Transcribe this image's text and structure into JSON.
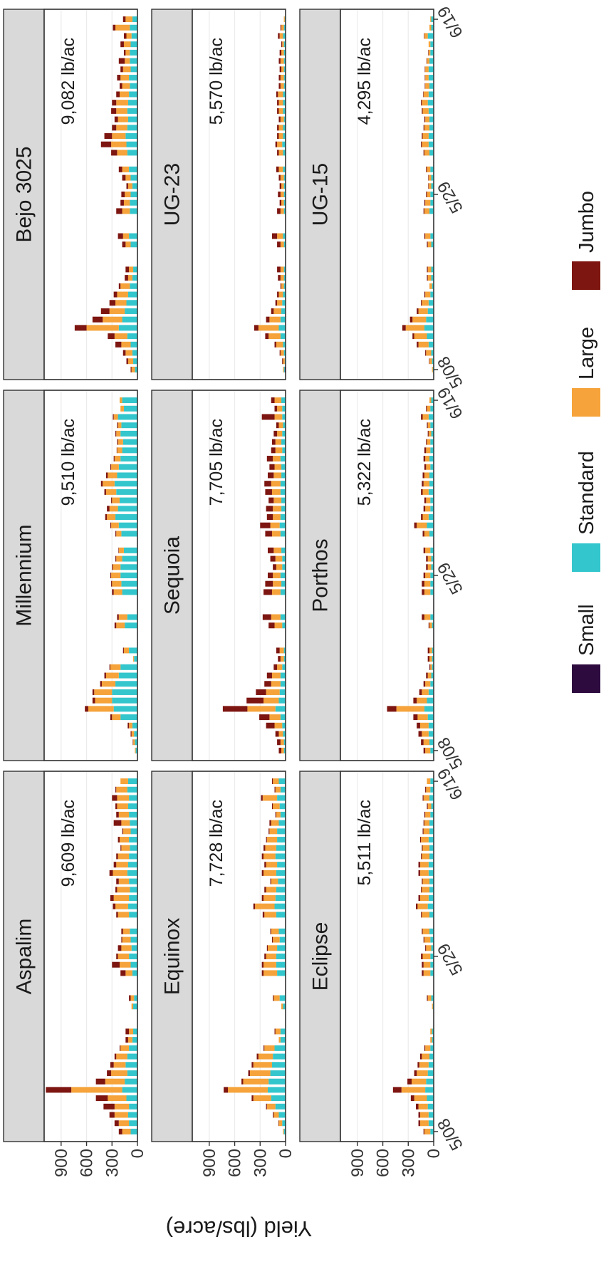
{
  "chart_data": {
    "type": "bar",
    "stacked": true,
    "facet_layout": "3 rows x 3 columns",
    "ylabel": "Yield (lbs/acre)",
    "xlabel": "",
    "ylim": [
      0,
      1100
    ],
    "y_ticks": [
      "0",
      "300",
      "600",
      "900"
    ],
    "y_tick_values": [
      0,
      300,
      600,
      900
    ],
    "x_tick_labels": [
      "5/08",
      "5/29",
      "6/19"
    ],
    "x_tick_days": [
      0,
      21,
      42
    ],
    "harvest_days": [
      0,
      1,
      2,
      3,
      4,
      5,
      6,
      7,
      8,
      9,
      10,
      11,
      12,
      15,
      16,
      19,
      20,
      21,
      22,
      23,
      24,
      26,
      27,
      28,
      29,
      30,
      31,
      32,
      33,
      34,
      35,
      36,
      37,
      38,
      39,
      40,
      41,
      42
    ],
    "size_classes": [
      {
        "name": "Small",
        "color": "#2d0b3f"
      },
      {
        "name": "Standard",
        "color": "#33c6cc"
      },
      {
        "name": "Large",
        "color": "#f5a33a"
      },
      {
        "name": "Jumbo",
        "color": "#7d1510"
      }
    ],
    "legend_position": "bottom",
    "panels": [
      {
        "variety": "Aspalim",
        "total": "9,609 lb/ac",
        "standard": [
          80,
          100,
          110,
          100,
          130,
          180,
          150,
          120,
          140,
          120,
          100,
          60,
          50,
          50,
          40,
          60,
          80,
          100,
          70,
          80,
          90,
          100,
          110,
          100,
          90,
          100,
          120,
          110,
          100,
          90,
          100,
          80,
          90,
          100,
          110,
          100,
          120,
          110
        ],
        "large": [
          100,
          120,
          160,
          170,
          220,
          600,
          230,
          190,
          140,
          130,
          100,
          50,
          50,
          20,
          40,
          80,
          130,
          130,
          120,
          100,
          80,
          130,
          150,
          180,
          150,
          120,
          170,
          140,
          130,
          100,
          110,
          90,
          100,
          120,
          130,
          140,
          130,
          90
        ],
        "jumbo": [
          40,
          50,
          60,
          130,
          140,
          300,
          110,
          50,
          40,
          20,
          10,
          30,
          40,
          0,
          20,
          60,
          90,
          20,
          40,
          10,
          20,
          20,
          30,
          40,
          20,
          30,
          40,
          30,
          20,
          10,
          20,
          10,
          90,
          30,
          20,
          60,
          10,
          0
        ]
      },
      {
        "variety": "Millennium",
        "total": "9,510 lb/ac",
        "standard": [
          20,
          30,
          40,
          60,
          200,
          280,
          300,
          300,
          260,
          220,
          200,
          40,
          100,
          150,
          120,
          180,
          190,
          200,
          200,
          180,
          160,
          190,
          220,
          260,
          230,
          210,
          250,
          270,
          240,
          220,
          200,
          180,
          170,
          200,
          190,
          230,
          160,
          180
        ],
        "large": [
          10,
          20,
          30,
          40,
          100,
          300,
          200,
          210,
          160,
          150,
          120,
          10,
          60,
          100,
          100,
          100,
          110,
          110,
          90,
          70,
          60,
          60,
          90,
          100,
          100,
          90,
          120,
          140,
          110,
          90,
          70,
          60,
          60,
          50,
          40,
          50,
          40,
          30
        ],
        "jumbo": [
          0,
          5,
          10,
          15,
          20,
          40,
          30,
          20,
          20,
          20,
          10,
          0,
          10,
          20,
          20,
          20,
          10,
          10,
          10,
          10,
          5,
          10,
          10,
          20,
          30,
          10,
          20,
          20,
          20,
          10,
          10,
          5,
          10,
          10,
          10,
          10,
          0,
          0
        ],
        "small": [
          0,
          0,
          0,
          0,
          0,
          0,
          0,
          0,
          0,
          0,
          0,
          0,
          0,
          0,
          0,
          0,
          0,
          0,
          0,
          0,
          0,
          0,
          0,
          0,
          0,
          0,
          0,
          0,
          0,
          0,
          0,
          0,
          0,
          0,
          0,
          0,
          0,
          0
        ]
      },
      {
        "variety": "Bejo 3025",
        "total": "9,082 lb/ac",
        "standard": [
          30,
          50,
          60,
          80,
          120,
          220,
          180,
          150,
          130,
          110,
          90,
          60,
          50,
          80,
          100,
          90,
          90,
          80,
          60,
          80,
          100,
          120,
          130,
          140,
          120,
          110,
          120,
          110,
          100,
          90,
          100,
          80,
          90,
          90,
          80,
          70,
          90,
          60
        ],
        "large": [
          40,
          60,
          80,
          110,
          150,
          380,
          230,
          180,
          130,
          130,
          110,
          50,
          50,
          60,
          70,
          90,
          70,
          70,
          50,
          60,
          80,
          120,
          180,
          160,
          130,
          120,
          130,
          140,
          110,
          90,
          100,
          90,
          60,
          50,
          80,
          60,
          170,
          80
        ],
        "jumbo": [
          10,
          20,
          30,
          70,
          80,
          140,
          120,
          100,
          70,
          40,
          20,
          40,
          40,
          40,
          60,
          70,
          40,
          40,
          20,
          40,
          40,
          70,
          120,
          90,
          50,
          40,
          60,
          50,
          40,
          30,
          40,
          30,
          70,
          20,
          40,
          30,
          30,
          30
        ]
      },
      {
        "variety": "Equinox",
        "total": "7,728 lb/ac",
        "standard": [
          20,
          40,
          80,
          120,
          170,
          210,
          200,
          180,
          160,
          150,
          130,
          60,
          60,
          30,
          70,
          100,
          110,
          110,
          100,
          70,
          80,
          110,
          130,
          120,
          110,
          90,
          110,
          100,
          120,
          110,
          100,
          100,
          80,
          60,
          70,
          100,
          60,
          80
        ],
        "large": [
          10,
          40,
          60,
          100,
          210,
          470,
          300,
          240,
          220,
          170,
          120,
          20,
          60,
          20,
          70,
          160,
          150,
          120,
          110,
          80,
          90,
          140,
          230,
          140,
          120,
          80,
          150,
          130,
          140,
          130,
          120,
          90,
          90,
          50,
          80,
          170,
          60,
          70
        ],
        "jumbo": [
          0,
          5,
          10,
          10,
          20,
          50,
          20,
          20,
          20,
          20,
          10,
          0,
          10,
          0,
          10,
          20,
          20,
          20,
          10,
          10,
          10,
          20,
          20,
          20,
          20,
          10,
          20,
          20,
          20,
          20,
          10,
          10,
          20,
          10,
          10,
          20,
          10,
          10
        ]
      },
      {
        "variety": "Sequoia",
        "total": "7,705 lb/ac",
        "standard": [
          20,
          20,
          30,
          40,
          60,
          120,
          80,
          70,
          60,
          60,
          40,
          20,
          20,
          40,
          60,
          60,
          50,
          60,
          40,
          40,
          50,
          60,
          70,
          60,
          50,
          50,
          60,
          60,
          50,
          50,
          60,
          40,
          50,
          40,
          30,
          40,
          40,
          50
        ],
        "large": [
          30,
          40,
          50,
          90,
          130,
          330,
          180,
          160,
          110,
          100,
          60,
          40,
          50,
          90,
          110,
          100,
          100,
          90,
          70,
          80,
          90,
          100,
          110,
          90,
          100,
          90,
          100,
          110,
          90,
          80,
          90,
          80,
          70,
          60,
          50,
          90,
          60,
          80
        ],
        "jumbo": [
          30,
          40,
          40,
          100,
          120,
          290,
          200,
          120,
          80,
          60,
          40,
          30,
          40,
          70,
          100,
          100,
          90,
          60,
          40,
          60,
          70,
          80,
          120,
          70,
          80,
          60,
          80,
          80,
          70,
          60,
          70,
          50,
          40,
          40,
          30,
          150,
          30,
          40
        ]
      },
      {
        "variety": "UG-23",
        "total": "5,570 lb/ac",
        "standard": [
          10,
          10,
          20,
          30,
          60,
          80,
          60,
          50,
          40,
          30,
          20,
          20,
          20,
          20,
          30,
          20,
          20,
          20,
          20,
          20,
          30,
          30,
          40,
          30,
          30,
          20,
          30,
          30,
          30,
          20,
          20,
          20,
          20,
          20,
          20,
          30,
          20,
          10
        ],
        "large": [
          10,
          20,
          40,
          80,
          140,
          240,
          130,
          90,
          60,
          50,
          30,
          40,
          40,
          40,
          70,
          40,
          30,
          40,
          30,
          40,
          50,
          50,
          60,
          50,
          50,
          40,
          50,
          50,
          60,
          40,
          40,
          30,
          40,
          30,
          20,
          40,
          30,
          10
        ],
        "jumbo": [
          0,
          10,
          10,
          20,
          40,
          50,
          40,
          30,
          20,
          20,
          10,
          30,
          40,
          40,
          60,
          40,
          20,
          30,
          20,
          20,
          30,
          20,
          20,
          20,
          20,
          20,
          20,
          20,
          20,
          20,
          20,
          20,
          20,
          20,
          10,
          20,
          10,
          0
        ],
        "small": [
          10,
          0,
          0,
          0,
          0,
          0,
          0,
          0,
          0,
          0,
          0,
          0,
          0,
          0,
          0,
          0,
          0,
          0,
          0,
          0,
          0,
          0,
          0,
          0,
          0,
          0,
          0,
          0,
          0,
          0,
          0,
          0,
          0,
          0,
          0,
          0,
          0,
          0
        ]
      },
      {
        "variety": "Eclipse",
        "total": "5,511 lb/ac",
        "standard": [
          40,
          60,
          60,
          70,
          80,
          100,
          90,
          70,
          60,
          50,
          40,
          20,
          20,
          10,
          30,
          40,
          40,
          40,
          30,
          40,
          50,
          50,
          70,
          60,
          50,
          50,
          60,
          60,
          50,
          50,
          60,
          50,
          50,
          40,
          30,
          50,
          40,
          40
        ],
        "large": [
          70,
          100,
          100,
          110,
          150,
          280,
          170,
          130,
          110,
          90,
          60,
          20,
          20,
          10,
          40,
          80,
          80,
          90,
          60,
          70,
          80,
          90,
          120,
          100,
          90,
          80,
          100,
          100,
          90,
          80,
          90,
          70,
          60,
          60,
          40,
          70,
          50,
          40
        ],
        "jumbo": [
          10,
          20,
          20,
          30,
          40,
          100,
          50,
          30,
          20,
          20,
          10,
          0,
          0,
          0,
          10,
          20,
          20,
          20,
          10,
          10,
          10,
          10,
          20,
          20,
          10,
          10,
          20,
          20,
          10,
          10,
          10,
          10,
          10,
          10,
          10,
          10,
          10,
          0
        ]
      },
      {
        "variety": "Porthos",
        "total": "5,322 lb/ac",
        "standard": [
          40,
          50,
          60,
          60,
          70,
          110,
          80,
          60,
          40,
          30,
          20,
          20,
          20,
          20,
          40,
          40,
          40,
          40,
          30,
          30,
          40,
          50,
          80,
          60,
          40,
          40,
          60,
          50,
          50,
          40,
          50,
          40,
          40,
          30,
          40,
          60,
          40,
          30
        ],
        "large": [
          60,
          70,
          80,
          100,
          120,
          330,
          120,
          80,
          60,
          40,
          20,
          30,
          30,
          30,
          70,
          70,
          70,
          60,
          40,
          40,
          60,
          60,
          120,
          70,
          60,
          50,
          70,
          70,
          60,
          50,
          50,
          50,
          40,
          30,
          30,
          70,
          40,
          20
        ],
        "jumbo": [
          20,
          30,
          40,
          40,
          50,
          110,
          40,
          30,
          20,
          20,
          10,
          20,
          20,
          10,
          30,
          30,
          30,
          20,
          20,
          20,
          20,
          20,
          30,
          20,
          20,
          20,
          20,
          20,
          20,
          20,
          20,
          20,
          10,
          10,
          10,
          20,
          10,
          0
        ]
      },
      {
        "variety": "UG-15",
        "total": "4,295 lb/ac",
        "standard": [
          10,
          20,
          30,
          60,
          80,
          110,
          90,
          70,
          60,
          40,
          20,
          30,
          30,
          30,
          40,
          50,
          40,
          40,
          30,
          30,
          40,
          50,
          60,
          60,
          50,
          50,
          60,
          70,
          60,
          50,
          60,
          60,
          50,
          40,
          40,
          70,
          30,
          30
        ],
        "large": [
          10,
          30,
          60,
          120,
          150,
          220,
          160,
          110,
          80,
          60,
          30,
          40,
          40,
          40,
          60,
          60,
          60,
          40,
          30,
          30,
          40,
          60,
          80,
          70,
          60,
          50,
          70,
          70,
          60,
          50,
          40,
          40,
          30,
          20,
          20,
          40,
          20,
          10
        ],
        "jumbo": [
          0,
          5,
          10,
          20,
          20,
          40,
          30,
          20,
          10,
          10,
          0,
          10,
          10,
          10,
          10,
          10,
          10,
          10,
          5,
          5,
          10,
          10,
          10,
          10,
          10,
          10,
          10,
          10,
          5,
          5,
          5,
          5,
          5,
          5,
          0,
          5,
          0,
          0
        ],
        "small": [
          0,
          0,
          0,
          0,
          0,
          0,
          0,
          0,
          0,
          0,
          0,
          0,
          0,
          0,
          0,
          0,
          0,
          0,
          0,
          0,
          0,
          0,
          0,
          0,
          0,
          0,
          0,
          0,
          0,
          0,
          0,
          0,
          0,
          0,
          0,
          0,
          0,
          0
        ]
      }
    ]
  }
}
